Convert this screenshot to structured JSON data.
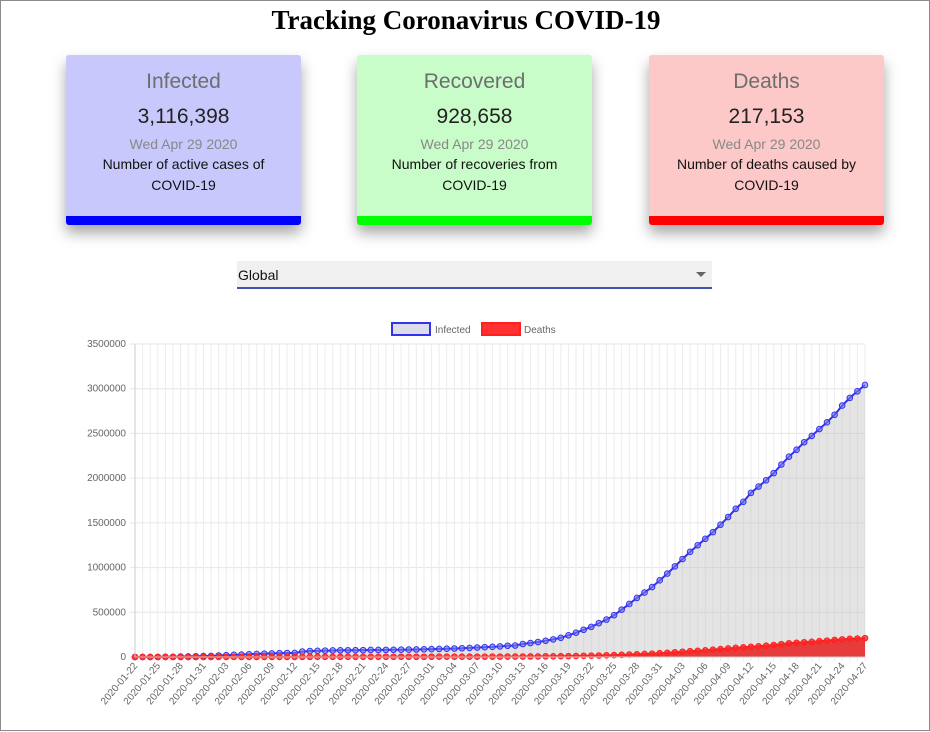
{
  "page": {
    "title": "Tracking Coronavirus COVID-19"
  },
  "cards": [
    {
      "title": "Infected",
      "value": "3,116,398",
      "date": "Wed Apr 29 2020",
      "desc": "Number of active cases of COVID-19",
      "bg": "#c8c8fc",
      "accent": "#0000ff"
    },
    {
      "title": "Recovered",
      "value": "928,658",
      "date": "Wed Apr 29 2020",
      "desc": "Number of recoveries from COVID-19",
      "bg": "#c8fcc8",
      "accent": "#00ff00"
    },
    {
      "title": "Deaths",
      "value": "217,153",
      "date": "Wed Apr 29 2020",
      "desc": "Number of deaths caused by COVID-19",
      "bg": "#fcc8c8",
      "accent": "#ff0000"
    }
  ],
  "country_select": {
    "value": "Global",
    "icon": "chevron-down-icon"
  },
  "chart_data": {
    "type": "line",
    "ylim": [
      0,
      3500000
    ],
    "yticks": [
      0,
      500000,
      1000000,
      1500000,
      2000000,
      2500000,
      3000000,
      3500000
    ],
    "xticks": [
      "2020-01-22",
      "2020-01-25",
      "2020-01-28",
      "2020-01-31",
      "2020-02-03",
      "2020-02-06",
      "2020-02-09",
      "2020-02-12",
      "2020-02-15",
      "2020-02-18",
      "2020-02-21",
      "2020-02-24",
      "2020-02-27",
      "2020-03-01",
      "2020-03-04",
      "2020-03-07",
      "2020-03-10",
      "2020-03-13",
      "2020-03-16",
      "2020-03-19",
      "2020-03-22",
      "2020-03-25",
      "2020-03-28",
      "2020-03-31",
      "2020-04-03",
      "2020-04-06",
      "2020-04-09",
      "2020-04-12",
      "2020-04-15",
      "2020-04-18",
      "2020-04-21",
      "2020-04-24",
      "2020-04-27"
    ],
    "legend_position": "top",
    "grid": true,
    "series": [
      {
        "name": "Infected",
        "color": "#3333ee",
        "fill": "rgba(190,190,190,0.42)",
        "values": [
          555,
          654,
          941,
          1434,
          2118,
          2927,
          5578,
          6166,
          8234,
          9927,
          12038,
          16787,
          19881,
          23892,
          27635,
          30794,
          34391,
          37120,
          40150,
          42762,
          44802,
          45221,
          60368,
          66885,
          69030,
          71224,
          73258,
          75136,
          75639,
          76197,
          76819,
          78572,
          78958,
          79561,
          80406,
          81388,
          82746,
          84112,
          86011,
          88369,
          90306,
          92840,
          95120,
          97886,
          101801,
          105847,
          109821,
          113590,
          118620,
          125875,
          128352,
          145205,
          156101,
          167454,
          181574,
          197102,
          214821,
          242570,
          272208,
          304507,
          336953,
          378235,
          418045,
          467653,
          529591,
          593291,
          660693,
          720140,
          782389,
          857487,
          932605,
          1013466,
          1095917,
          1176060,
          1249754,
          1321481,
          1396476,
          1479804,
          1565278,
          1657526,
          1735650,
          1835187,
          1905935,
          1976191,
          2056054,
          2152437,
          2240190,
          2317758,
          2401378,
          2472259,
          2549123,
          2624068,
          2708885,
          2811193,
          2897645,
          2971475,
          3041764
        ]
      },
      {
        "name": "Deaths",
        "color": "#ff2020",
        "fill": "rgba(230,30,30,0.85)",
        "values": [
          17,
          18,
          26,
          42,
          56,
          82,
          131,
          133,
          171,
          213,
          259,
          362,
          426,
          492,
          564,
          634,
          719,
          806,
          906,
          1013,
          1113,
          1118,
          1371,
          1523,
          1666,
          1770,
          1868,
          2007,
          2122,
          2247,
          2251,
          2458,
          2469,
          2629,
          2708,
          2770,
          2814,
          2872,
          2941,
          2996,
          3085,
          3160,
          3254,
          3348,
          3460,
          3558,
          3803,
          3996,
          4262,
          4615,
          4720,
          5404,
          5819,
          6440,
          7126,
          7905,
          8733,
          9867,
          11299,
          12973,
          14651,
          16497,
          18615,
          21181,
          23970,
          27198,
          30652,
          33925,
          37582,
          42107,
          46809,
          52983,
          58787,
          64606,
          69374,
          74565,
          81937,
          88338,
          95455,
          102525,
          108503,
          114091,
          119482,
          125984,
          134177,
          143800,
          153821,
          159509,
          165044,
          169986,
          176583,
          183066,
          190858,
          197159,
          202846,
          206544,
          211167
        ]
      }
    ]
  }
}
